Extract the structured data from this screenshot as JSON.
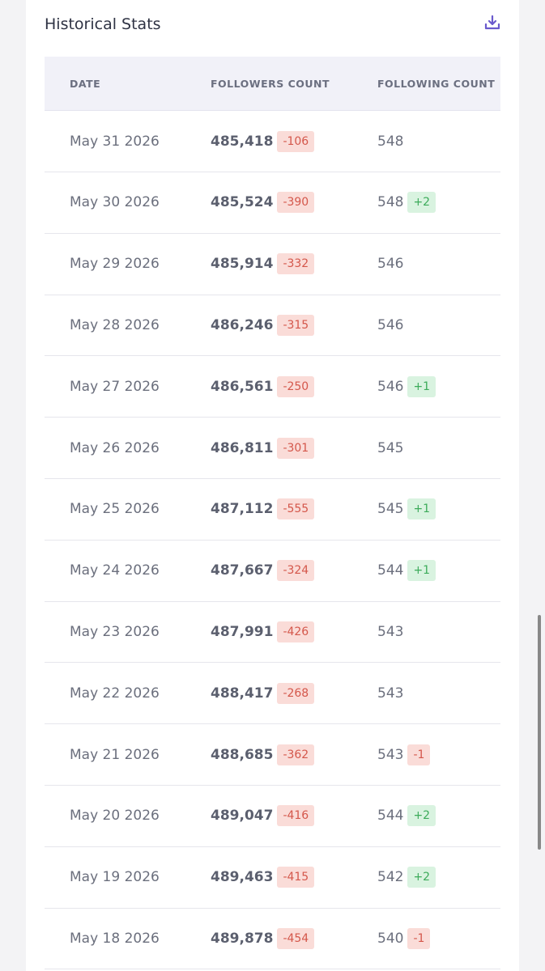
{
  "header": {
    "title": "Historical Stats"
  },
  "table": {
    "columns": [
      "DATE",
      "FOLLOWERS COUNT",
      "FOLLOWING COUNT"
    ],
    "rows": [
      {
        "date": "May 31 2026",
        "followers": "485,418",
        "followers_change": "-106",
        "following": "548"
      },
      {
        "date": "May 30 2026",
        "followers": "485,524",
        "followers_change": "-390",
        "following": "548",
        "following_change": "+2"
      },
      {
        "date": "May 29 2026",
        "followers": "485,914",
        "followers_change": "-332",
        "following": "546"
      },
      {
        "date": "May 28 2026",
        "followers": "486,246",
        "followers_change": "-315",
        "following": "546"
      },
      {
        "date": "May 27 2026",
        "followers": "486,561",
        "followers_change": "-250",
        "following": "546",
        "following_change": "+1"
      },
      {
        "date": "May 26 2026",
        "followers": "486,811",
        "followers_change": "-301",
        "following": "545"
      },
      {
        "date": "May 25 2026",
        "followers": "487,112",
        "followers_change": "-555",
        "following": "545",
        "following_change": "+1"
      },
      {
        "date": "May 24 2026",
        "followers": "487,667",
        "followers_change": "-324",
        "following": "544",
        "following_change": "+1"
      },
      {
        "date": "May 23 2026",
        "followers": "487,991",
        "followers_change": "-426",
        "following": "543"
      },
      {
        "date": "May 22 2026",
        "followers": "488,417",
        "followers_change": "-268",
        "following": "543"
      },
      {
        "date": "May 21 2026",
        "followers": "488,685",
        "followers_change": "-362",
        "following": "543",
        "following_change": "-1"
      },
      {
        "date": "May 20 2026",
        "followers": "489,047",
        "followers_change": "-416",
        "following": "544",
        "following_change": "+2"
      },
      {
        "date": "May 19 2026",
        "followers": "489,463",
        "followers_change": "-415",
        "following": "542",
        "following_change": "+2"
      },
      {
        "date": "May 18 2026",
        "followers": "489,878",
        "followers_change": "-454",
        "following": "540",
        "following_change": "-1"
      }
    ]
  }
}
